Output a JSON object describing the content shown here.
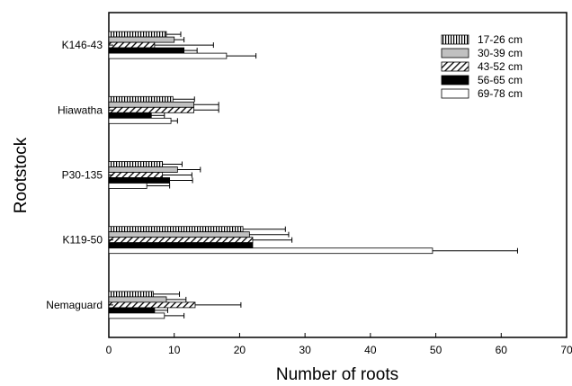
{
  "chart_data": {
    "type": "bar",
    "orientation": "horizontal",
    "xlabel": "Number of roots",
    "ylabel": "Rootstock",
    "xlim": [
      0,
      70
    ],
    "xticks": [
      "0",
      "10",
      "20",
      "30",
      "40",
      "50",
      "60",
      "70"
    ],
    "categories": [
      "K146-43",
      "Hiawatha",
      "P30-135",
      "K119-50",
      "Nemaguard"
    ],
    "grid": false,
    "legend_position": "top-right",
    "error_bars": true,
    "series": [
      {
        "name": "17-26 cm",
        "pattern": "vertical-stripes",
        "values": [
          8.8,
          9.8,
          8.2,
          20.5,
          6.8
        ],
        "errors": [
          2.2,
          3.3,
          3.0,
          6.5,
          4.0
        ]
      },
      {
        "name": "30-39 cm",
        "pattern": "gray",
        "color": "#c0c0c0",
        "values": [
          10.0,
          13.0,
          10.5,
          21.5,
          8.8
        ],
        "errors": [
          1.5,
          3.8,
          3.5,
          6.0,
          3.0
        ]
      },
      {
        "name": "43-52 cm",
        "pattern": "diagonal-hatch",
        "values": [
          7.0,
          13.0,
          8.2,
          22.0,
          13.2
        ],
        "errors": [
          9.0,
          3.8,
          4.5,
          6.0,
          7.0
        ]
      },
      {
        "name": "56-65 cm",
        "pattern": "black",
        "color": "#000000",
        "values": [
          11.5,
          6.5,
          9.3,
          22.0,
          7.0
        ],
        "errors": [
          2.0,
          2.0,
          3.5,
          0.0,
          2.0
        ]
      },
      {
        "name": "69-78 cm",
        "pattern": "white",
        "color": "#ffffff",
        "values": [
          18.0,
          9.5,
          5.8,
          49.5,
          8.5
        ],
        "errors": [
          4.5,
          1.0,
          3.5,
          13.0,
          3.0
        ]
      }
    ]
  }
}
